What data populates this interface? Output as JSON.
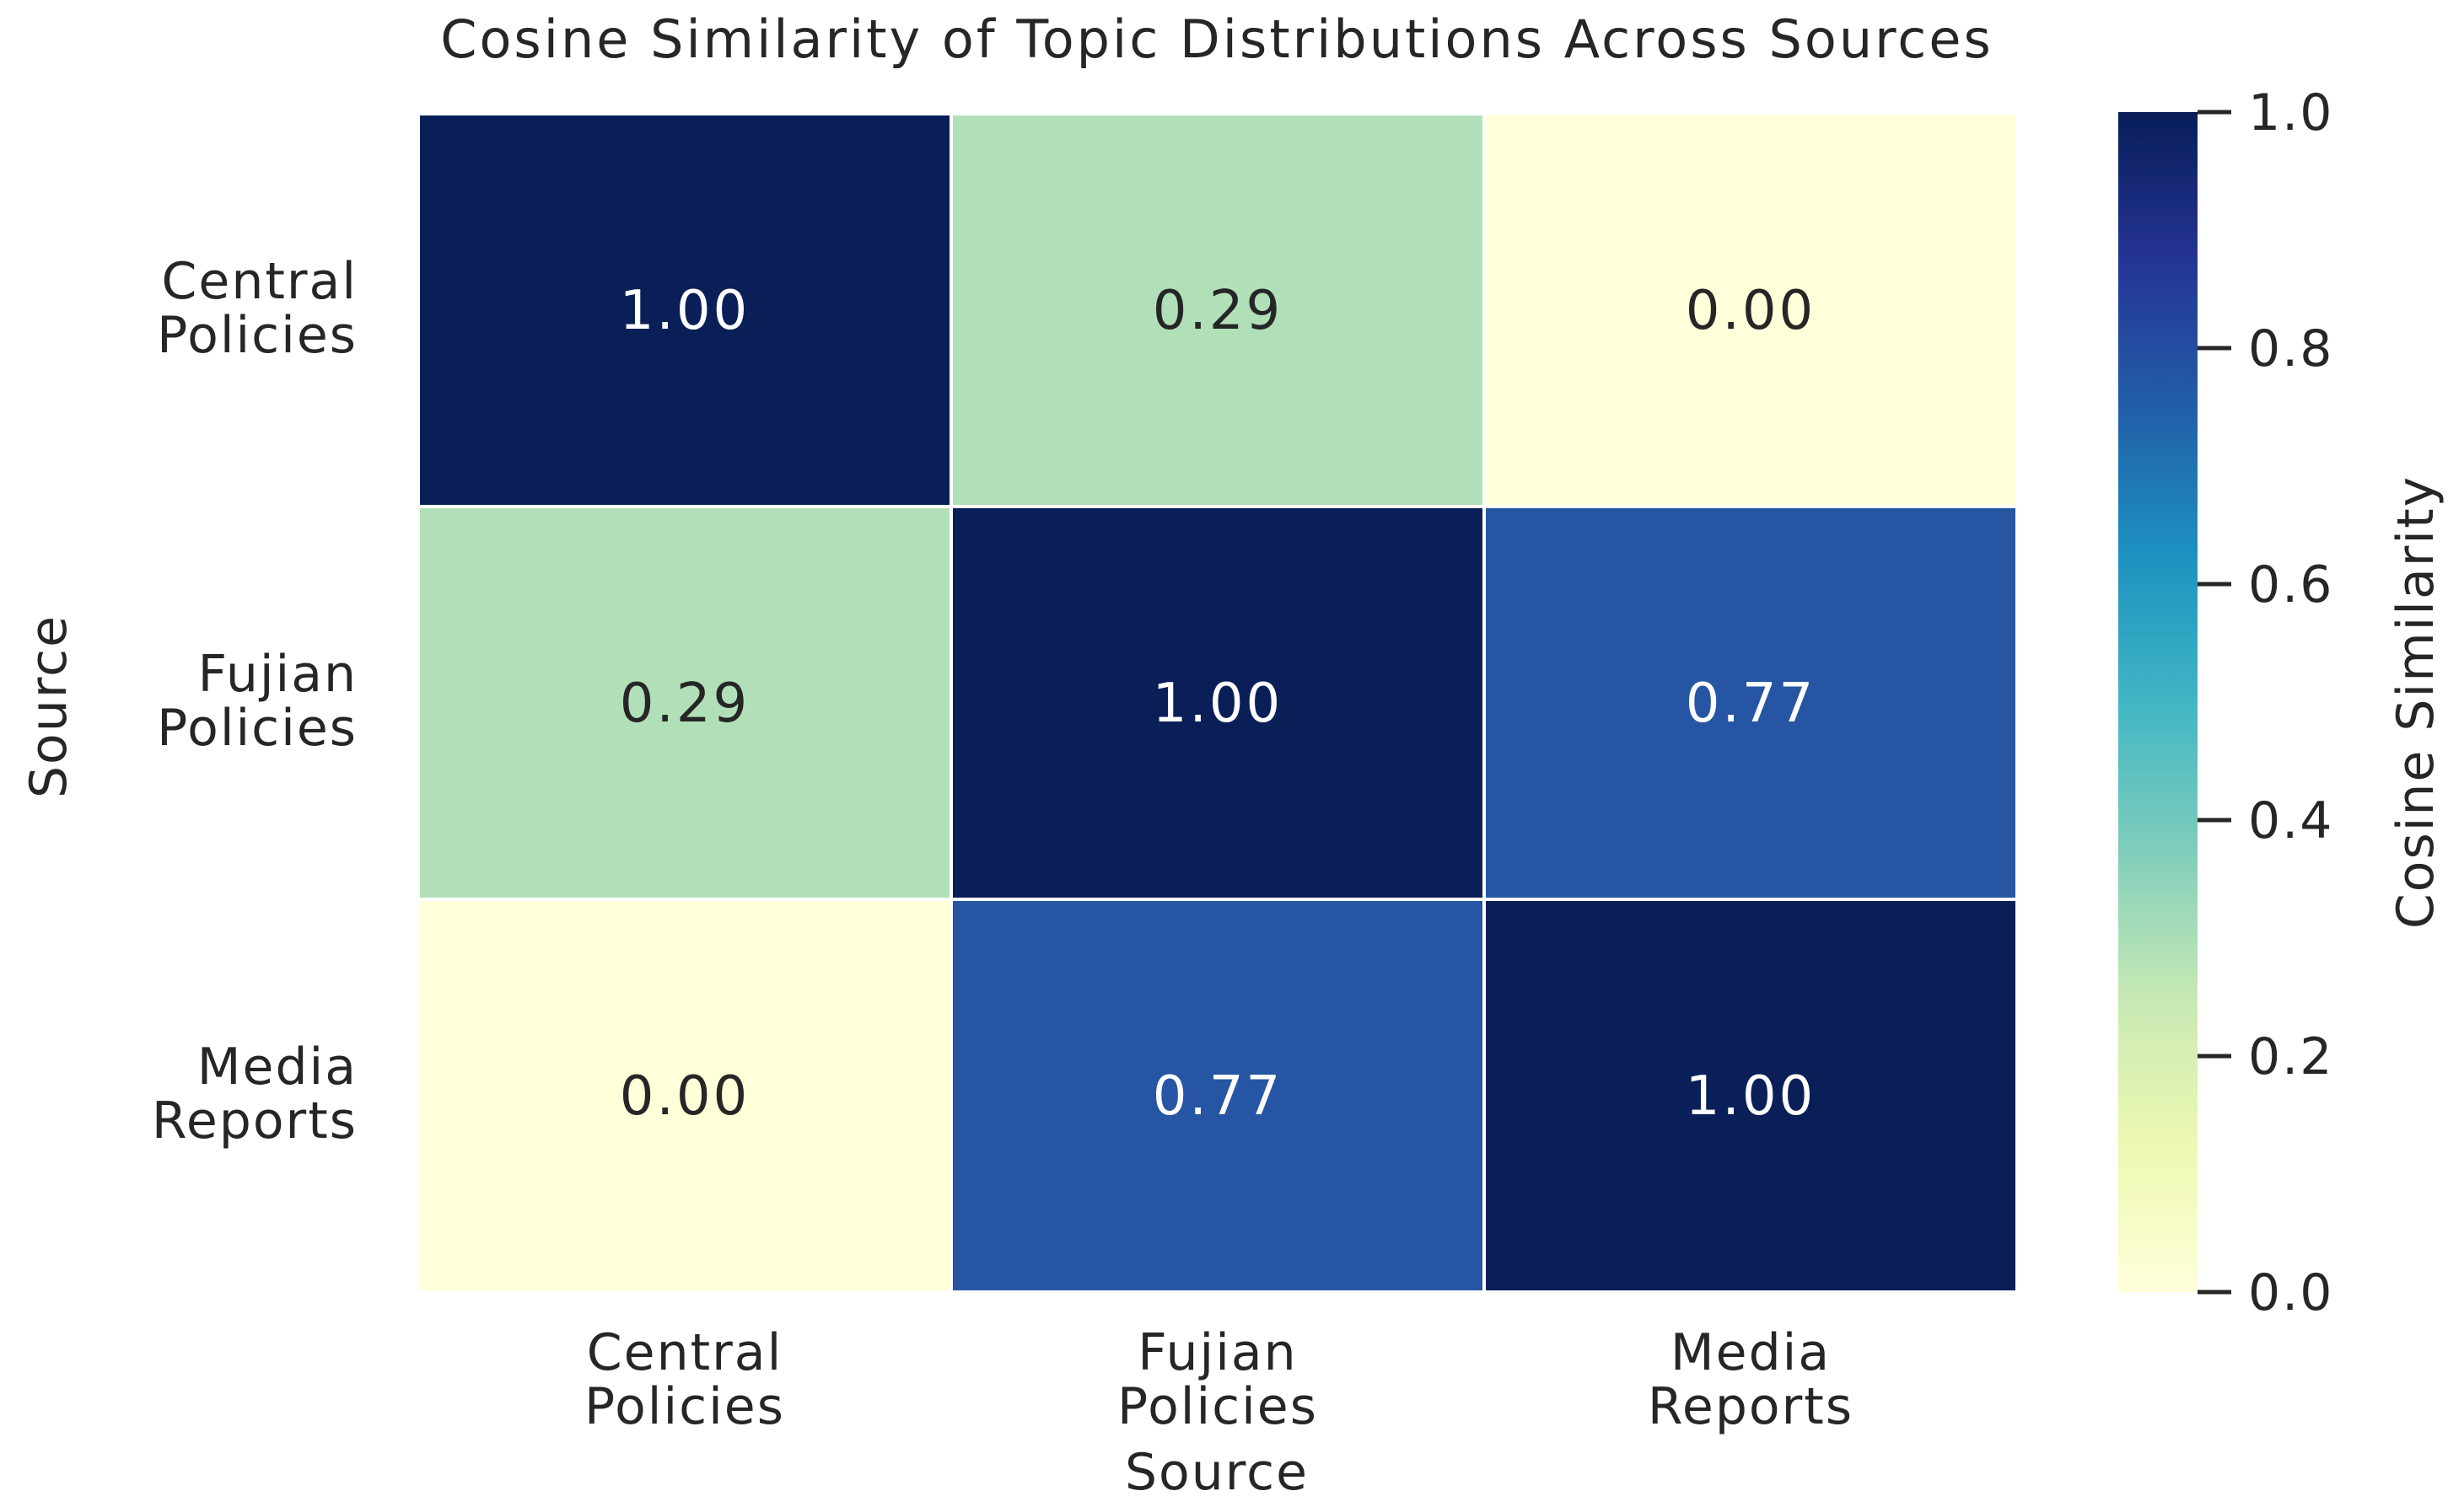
{
  "chart_data": {
    "type": "heatmap",
    "title": "Cosine Similarity of Topic Distributions Across Sources",
    "xlabel": "Source",
    "ylabel": "Source",
    "x_categories": [
      [
        "Central",
        "Policies"
      ],
      [
        "Fujian",
        "Policies"
      ],
      [
        "Media",
        "Reports"
      ]
    ],
    "y_categories": [
      [
        "Central",
        "Policies"
      ],
      [
        "Fujian",
        "Policies"
      ],
      [
        "Media",
        "Reports"
      ]
    ],
    "values": [
      [
        1.0,
        0.29,
        0.0
      ],
      [
        0.29,
        1.0,
        0.77
      ],
      [
        0.0,
        0.77,
        1.0
      ]
    ],
    "value_labels": [
      [
        "1.00",
        "0.29",
        "0.00"
      ],
      [
        "0.29",
        "1.00",
        "0.77"
      ],
      [
        "0.00",
        "0.77",
        "1.00"
      ]
    ],
    "colormap": "YlGnBu",
    "colorbar": {
      "label": "Cosine Similarity",
      "range": [
        0.0,
        1.0
      ],
      "ticks": [
        0.0,
        0.2,
        0.4,
        0.6,
        0.8,
        1.0
      ],
      "tick_labels": [
        "0.0",
        "0.2",
        "0.4",
        "0.6",
        "0.8",
        "1.0"
      ]
    },
    "colors": {
      "c100": "#0a1f58",
      "c077": "#2656a3",
      "c029": "#b1e0b8",
      "c000": "#ffffd9",
      "text_dark": "#262626",
      "text_light": "#ffffff",
      "cell_border": "#ffffff"
    }
  }
}
